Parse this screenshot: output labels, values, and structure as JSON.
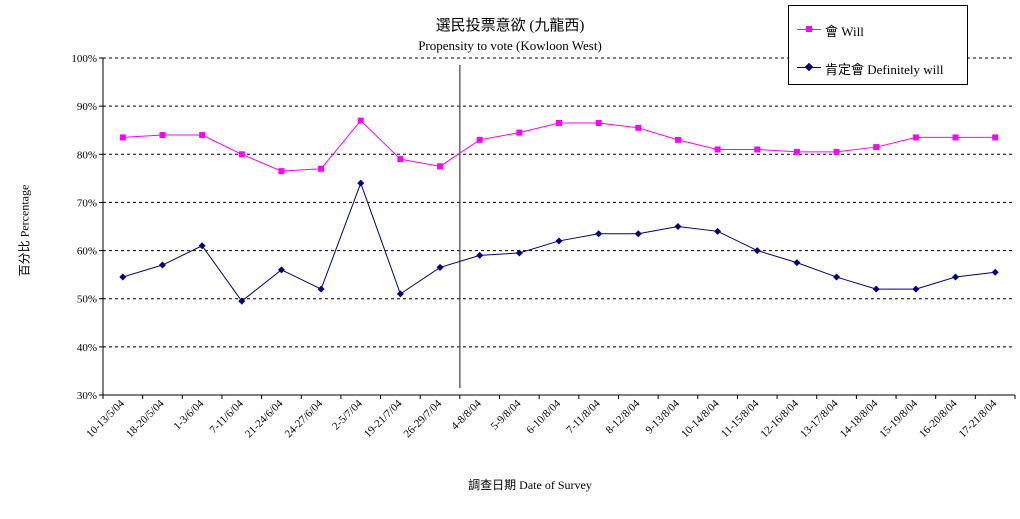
{
  "chart_data": {
    "type": "line",
    "title": "選民投票意欲 (九龍西)",
    "subtitle": "Propensity to vote (Kowloon West)",
    "xlabel": "調查日期 Date of Survey",
    "ylabel": "百分比 Percentage",
    "ylim": [
      30,
      100
    ],
    "yticks": [
      "30%",
      "40%",
      "50%",
      "60%",
      "70%",
      "80%",
      "90%",
      "100%"
    ],
    "grid": "horizontal-dashed",
    "legend_position": "top-right",
    "categories": [
      "10-13/5/04",
      "18-20/5/04",
      "1-3/6/04",
      "7-11/6/04",
      "21-24/6/04",
      "24-27/6/04",
      "2-5/7/04",
      "19-21/7/04",
      "26-29/7/04",
      "4-8/8/04",
      "5-9/8/04",
      "6-10/8/04",
      "7-11/8/04",
      "8-12/8/04",
      "9-13/8/04",
      "10-14/8/04",
      "11-15/8/04",
      "12-16/8/04",
      "13-17/8/04",
      "14-18/8/04",
      "15-19/8/04",
      "16-20/8/04",
      "17-21/8/04"
    ],
    "vertical_marker_between": [
      "26-29/7/04",
      "4-8/8/04"
    ],
    "series": [
      {
        "name": "會 Will",
        "color": "#ff00ff",
        "marker": "square",
        "values": [
          83.5,
          84,
          84,
          80,
          76.5,
          77,
          87,
          79,
          77.5,
          83,
          84.5,
          86.5,
          86.5,
          85.5,
          83,
          81,
          81,
          80.5,
          80.5,
          81.5,
          83.5,
          83.5,
          83.5
        ]
      },
      {
        "name": "肯定會 Definitely will",
        "color": "#000080",
        "marker": "diamond",
        "values": [
          54.5,
          57,
          61,
          49.5,
          56,
          52,
          74,
          51,
          56.5,
          59,
          59.5,
          62,
          63.5,
          63.5,
          65,
          64,
          60,
          57.5,
          54.5,
          52,
          52,
          54.5,
          55.5
        ]
      }
    ]
  }
}
